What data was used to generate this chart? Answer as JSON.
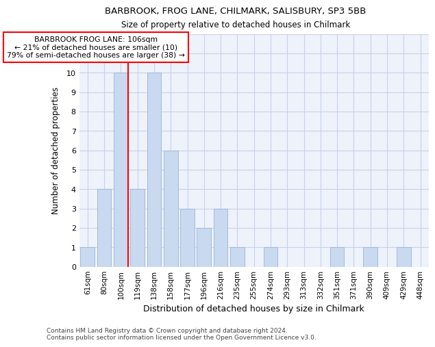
{
  "title_line1": "BARBROOK, FROG LANE, CHILMARK, SALISBURY, SP3 5BB",
  "title_line2": "Size of property relative to detached houses in Chilmark",
  "xlabel": "Distribution of detached houses by size in Chilmark",
  "ylabel": "Number of detached properties",
  "categories": [
    "61sqm",
    "80sqm",
    "100sqm",
    "119sqm",
    "138sqm",
    "158sqm",
    "177sqm",
    "196sqm",
    "216sqm",
    "235sqm",
    "255sqm",
    "274sqm",
    "293sqm",
    "313sqm",
    "332sqm",
    "351sqm",
    "371sqm",
    "390sqm",
    "409sqm",
    "429sqm",
    "448sqm"
  ],
  "values": [
    1,
    4,
    10,
    4,
    10,
    6,
    3,
    2,
    3,
    1,
    0,
    1,
    0,
    0,
    0,
    1,
    0,
    1,
    0,
    1,
    0
  ],
  "bar_color": "#c8d9f0",
  "bar_edge_color": "#9ab5d8",
  "ref_line_x": 2.45,
  "ref_line_color": "red",
  "annotation_text": "BARBROOK FROG LANE: 106sqm\n← 21% of detached houses are smaller (10)\n79% of semi-detached houses are larger (38) →",
  "annotation_box_color": "white",
  "annotation_box_edge_color": "red",
  "ylim": [
    0,
    12
  ],
  "yticks": [
    0,
    1,
    2,
    3,
    4,
    5,
    6,
    7,
    8,
    9,
    10,
    11,
    12
  ],
  "footer_line1": "Contains HM Land Registry data © Crown copyright and database right 2024.",
  "footer_line2": "Contains public sector information licensed under the Open Government Licence v3.0.",
  "background_color": "#ffffff",
  "plot_bg_color": "#eef2fb",
  "grid_color": "#c8d0e8"
}
